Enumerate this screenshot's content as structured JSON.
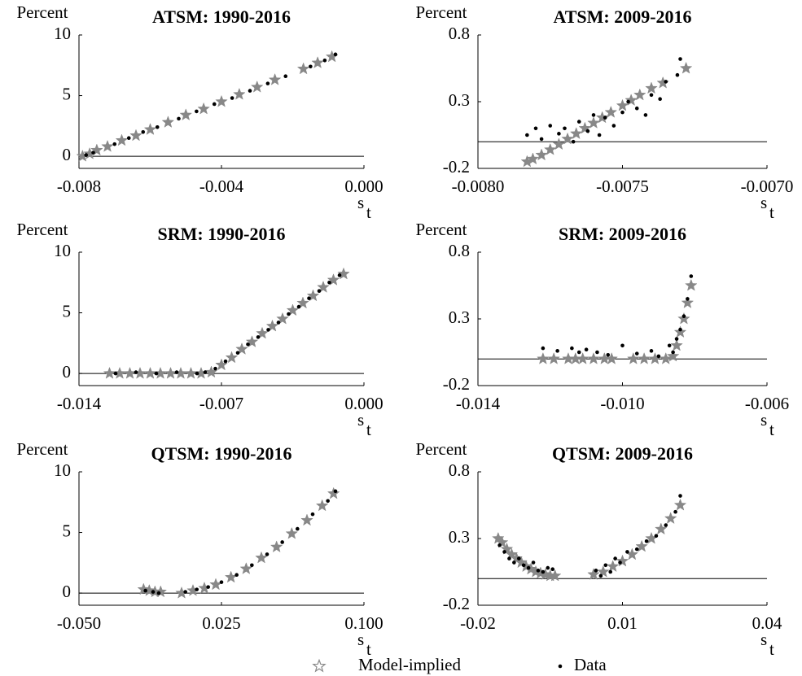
{
  "chart_data": [
    {
      "type": "scatter",
      "title": "ATSM: 1990-2016",
      "ylabel": "Percent",
      "xlabel": {
        "base": "s",
        "subscript": "t"
      },
      "xlim": [
        -0.008,
        0
      ],
      "xticks": [
        {
          "value": -0.008,
          "label": "-0.008"
        },
        {
          "value": -0.004,
          "label": "-0.004"
        },
        {
          "value": 0,
          "label": "0.000"
        }
      ],
      "ylim": [
        -1,
        10
      ],
      "yticks": [
        0,
        5,
        10
      ],
      "hline": 0,
      "series": [
        {
          "marker": "star",
          "color": "#888888",
          "x": [
            -0.0079,
            -0.0077,
            -0.0075,
            -0.0072,
            -0.0068,
            -0.0064,
            -0.006,
            -0.0055,
            -0.005,
            -0.0045,
            -0.004,
            -0.0035,
            -0.003,
            -0.0025,
            -0.0017,
            -0.0013,
            -0.0009
          ],
          "values": [
            0,
            0.2,
            0.5,
            0.8,
            1.3,
            1.7,
            2.2,
            2.8,
            3.4,
            3.9,
            4.5,
            5.1,
            5.7,
            6.3,
            7.2,
            7.7,
            8.2
          ]
        },
        {
          "marker": "dot",
          "color": "#000000",
          "x": [
            -0.0078,
            -0.0076,
            -0.007,
            -0.0066,
            -0.0062,
            -0.0058,
            -0.0052,
            -0.0047,
            -0.0042,
            -0.0037,
            -0.0032,
            -0.0027,
            -0.0022,
            -0.0015,
            -0.0011,
            -0.0008
          ],
          "values": [
            0.1,
            0.3,
            1.0,
            1.5,
            2.0,
            2.4,
            3.1,
            3.7,
            4.3,
            4.8,
            5.4,
            6.0,
            6.6,
            7.4,
            7.9,
            8.4
          ]
        }
      ]
    },
    {
      "type": "scatter",
      "title": "ATSM: 2009-2016",
      "ylabel": "Percent",
      "xlabel": {
        "base": "s",
        "subscript": "t"
      },
      "xlim": [
        -0.008,
        -0.007
      ],
      "xticks": [
        {
          "value": -0.008,
          "label": "-0.0080"
        },
        {
          "value": -0.0075,
          "label": "-0.0075"
        },
        {
          "value": -0.007,
          "label": "-0.0070"
        }
      ],
      "ylim": [
        -0.2,
        0.8
      ],
      "yticks": [
        -0.2,
        0.3,
        0.8
      ],
      "hline": 0,
      "series": [
        {
          "marker": "star",
          "color": "#888888",
          "x": [
            -0.00783,
            -0.00781,
            -0.00778,
            -0.00775,
            -0.00772,
            -0.00769,
            -0.00766,
            -0.00763,
            -0.0076,
            -0.00757,
            -0.00754,
            -0.0075,
            -0.00747,
            -0.00744,
            -0.0074,
            -0.00736,
            -0.00728
          ],
          "values": [
            -0.15,
            -0.13,
            -0.1,
            -0.06,
            -0.02,
            0.02,
            0.06,
            0.1,
            0.14,
            0.18,
            0.22,
            0.27,
            0.31,
            0.35,
            0.4,
            0.44,
            0.55
          ]
        },
        {
          "marker": "dot",
          "color": "#000000",
          "x": [
            -0.00783,
            -0.0078,
            -0.00778,
            -0.00775,
            -0.00772,
            -0.0077,
            -0.00767,
            -0.00765,
            -0.00762,
            -0.0076,
            -0.00758,
            -0.00756,
            -0.00753,
            -0.0075,
            -0.00748,
            -0.00745,
            -0.00742,
            -0.0074,
            -0.00737,
            -0.00735,
            -0.00731,
            -0.0073
          ],
          "values": [
            0.05,
            0.1,
            0.02,
            0.12,
            0.06,
            0.1,
            0.0,
            0.15,
            0.08,
            0.2,
            0.05,
            0.18,
            0.12,
            0.22,
            0.3,
            0.25,
            0.2,
            0.35,
            0.32,
            0.45,
            0.5,
            0.62
          ]
        }
      ]
    },
    {
      "type": "scatter",
      "title": "SRM: 1990-2016",
      "ylabel": "Percent",
      "xlabel": {
        "base": "s",
        "subscript": "t"
      },
      "xlim": [
        -0.014,
        0
      ],
      "xticks": [
        {
          "value": -0.014,
          "label": "-0.014"
        },
        {
          "value": -0.007,
          "label": "-0.007"
        },
        {
          "value": 0,
          "label": "0.000"
        }
      ],
      "ylim": [
        -1,
        10
      ],
      "yticks": [
        0,
        5,
        10
      ],
      "hline": 0,
      "series": [
        {
          "marker": "star",
          "color": "#888888",
          "x": [
            -0.0125,
            -0.012,
            -0.0115,
            -0.011,
            -0.0105,
            -0.01,
            -0.0095,
            -0.009,
            -0.0085,
            -0.008,
            -0.0075,
            -0.007,
            -0.0065,
            -0.006,
            -0.0055,
            -0.005,
            -0.0045,
            -0.004,
            -0.0035,
            -0.003,
            -0.0025,
            -0.002,
            -0.0015,
            -0.001
          ],
          "values": [
            0,
            0,
            0,
            0,
            0,
            0,
            0,
            0,
            0,
            0,
            0.1,
            0.7,
            1.3,
            2.0,
            2.6,
            3.3,
            3.9,
            4.5,
            5.2,
            5.8,
            6.4,
            7.1,
            7.7,
            8.2
          ]
        },
        {
          "marker": "dot",
          "color": "#000000",
          "x": [
            -0.0122,
            -0.0112,
            -0.0102,
            -0.0092,
            -0.0082,
            -0.0078,
            -0.0073,
            -0.0068,
            -0.0062,
            -0.0057,
            -0.0052,
            -0.0047,
            -0.0042,
            -0.0037,
            -0.0032,
            -0.0027,
            -0.0022,
            -0.0017,
            -0.0012
          ],
          "values": [
            0,
            0.1,
            0,
            0.1,
            0,
            0.1,
            0.4,
            1.0,
            1.7,
            2.4,
            3.0,
            3.6,
            4.2,
            4.9,
            5.5,
            6.2,
            6.8,
            7.5,
            8.1
          ]
        }
      ]
    },
    {
      "type": "scatter",
      "title": "SRM: 2009-2016",
      "ylabel": "Percent",
      "xlabel": {
        "base": "s",
        "subscript": "t"
      },
      "xlim": [
        -0.014,
        -0.006
      ],
      "xticks": [
        {
          "value": -0.014,
          "label": "-0.014"
        },
        {
          "value": -0.01,
          "label": "-0.010"
        },
        {
          "value": -0.006,
          "label": "-0.006"
        }
      ],
      "ylim": [
        -0.2,
        0.8
      ],
      "yticks": [
        -0.2,
        0.3,
        0.8
      ],
      "hline": 0,
      "series": [
        {
          "marker": "star",
          "color": "#888888",
          "x": [
            -0.0122,
            -0.0119,
            -0.0115,
            -0.0113,
            -0.0111,
            -0.0108,
            -0.0105,
            -0.0103,
            -0.0097,
            -0.0094,
            -0.0091,
            -0.0088,
            -0.0086,
            -0.0085,
            -0.0084,
            -0.0083,
            -0.0082,
            -0.0081
          ],
          "values": [
            0,
            0,
            0,
            0,
            0,
            0,
            0,
            0,
            0,
            0,
            0,
            0,
            0.02,
            0.1,
            0.2,
            0.3,
            0.42,
            0.55
          ]
        },
        {
          "marker": "dot",
          "color": "#000000",
          "x": [
            -0.0122,
            -0.0118,
            -0.0114,
            -0.0112,
            -0.011,
            -0.0107,
            -0.0104,
            -0.01,
            -0.0096,
            -0.0092,
            -0.009,
            -0.0087,
            -0.0086,
            -0.0085,
            -0.0084,
            -0.0083,
            -0.0082,
            -0.0081
          ],
          "values": [
            0.08,
            0.06,
            0.08,
            0.05,
            0.07,
            0.05,
            0.03,
            0.1,
            0.04,
            0.06,
            0.02,
            0.1,
            0.05,
            0.15,
            0.22,
            0.32,
            0.45,
            0.62
          ]
        }
      ]
    },
    {
      "type": "scatter",
      "title": "QTSM: 1990-2016",
      "ylabel": "Percent",
      "xlabel": {
        "base": "s",
        "subscript": "t"
      },
      "xlim": [
        -0.05,
        0.1
      ],
      "xticks": [
        {
          "value": -0.05,
          "label": "-0.050"
        },
        {
          "value": 0.025,
          "label": "0.025"
        },
        {
          "value": 0.1,
          "label": "0.100"
        }
      ],
      "ylim": [
        -1,
        10
      ],
      "yticks": [
        0,
        5,
        10
      ],
      "hline": 0,
      "series": [
        {
          "marker": "star",
          "color": "#888888",
          "x": [
            -0.016,
            -0.013,
            -0.01,
            -0.007,
            0.004,
            0.01,
            0.016,
            0.022,
            0.03,
            0.038,
            0.046,
            0.054,
            0.062,
            0.07,
            0.078,
            0.084
          ],
          "values": [
            0.3,
            0.2,
            0.1,
            0.1,
            0,
            0.2,
            0.4,
            0.7,
            1.3,
            2.0,
            2.9,
            3.8,
            4.9,
            6.0,
            7.2,
            8.2
          ]
        },
        {
          "marker": "dot",
          "color": "#000000",
          "x": [
            -0.015,
            -0.011,
            -0.008,
            0.006,
            0.012,
            0.018,
            0.025,
            0.033,
            0.041,
            0.049,
            0.057,
            0.065,
            0.073,
            0.081,
            0.085
          ],
          "values": [
            0.2,
            0.1,
            0,
            0.1,
            0.3,
            0.5,
            0.9,
            1.5,
            2.3,
            3.2,
            4.2,
            5.3,
            6.5,
            7.6,
            8.4
          ]
        }
      ]
    },
    {
      "type": "scatter",
      "title": "QTSM: 2009-2016",
      "ylabel": "Percent",
      "xlabel": {
        "base": "s",
        "subscript": "t"
      },
      "xlim": [
        -0.02,
        0.04
      ],
      "xticks": [
        -0.02,
        0.01,
        0.04
      ],
      "ylim": [
        -0.2,
        0.8
      ],
      "yticks": [
        -0.2,
        0.3,
        0.8
      ],
      "hline": 0,
      "series": [
        {
          "marker": "star",
          "color": "#888888",
          "x": [
            -0.0158,
            -0.015,
            -0.014,
            -0.013,
            -0.012,
            -0.011,
            -0.01,
            -0.009,
            -0.008,
            -0.007,
            -0.006,
            -0.005,
            -0.004,
            0.004,
            0.006,
            0.008,
            0.01,
            0.012,
            0.014,
            0.016,
            0.018,
            0.02,
            0.022
          ],
          "values": [
            0.3,
            0.27,
            0.22,
            0.18,
            0.15,
            0.12,
            0.09,
            0.07,
            0.05,
            0.04,
            0.03,
            0.02,
            0.02,
            0.03,
            0.05,
            0.09,
            0.13,
            0.18,
            0.24,
            0.3,
            0.37,
            0.45,
            0.55
          ]
        },
        {
          "marker": "dot",
          "color": "#000000",
          "x": [
            -0.0155,
            -0.0145,
            -0.0135,
            -0.0125,
            -0.0115,
            -0.0105,
            -0.0095,
            -0.0085,
            -0.0075,
            -0.0065,
            -0.0055,
            -0.0045,
            0.0045,
            0.0055,
            0.0065,
            0.0075,
            0.0085,
            0.0095,
            0.011,
            0.013,
            0.015,
            0.017,
            0.019,
            0.021,
            0.022
          ],
          "values": [
            0.25,
            0.2,
            0.15,
            0.12,
            0.15,
            0.1,
            0.08,
            0.12,
            0.06,
            0.05,
            0.08,
            0.07,
            0.06,
            0.02,
            0.1,
            0.05,
            0.15,
            0.12,
            0.2,
            0.22,
            0.28,
            0.32,
            0.4,
            0.5,
            0.62
          ]
        }
      ]
    }
  ],
  "legend": {
    "entries": [
      {
        "name": "Model-implied"
      },
      {
        "name": "Data"
      }
    ]
  }
}
